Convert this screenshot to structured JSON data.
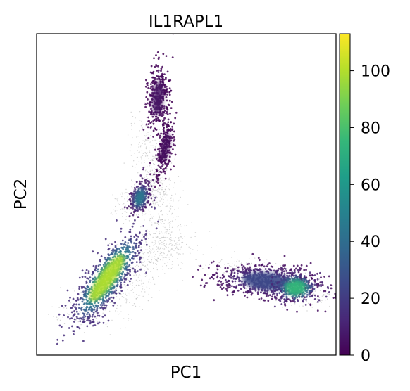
{
  "chart_data": {
    "type": "scatter",
    "title": "IL1RAPL1",
    "xlabel": "PC1",
    "ylabel": "PC2",
    "x_ticks_shown": false,
    "y_ticks_shown": false,
    "grid": false,
    "legend": "none",
    "colormap": "viridis",
    "colorbar": {
      "range": [
        0,
        113
      ],
      "ticks": [
        0,
        20,
        40,
        60,
        80,
        100
      ],
      "tick_labels": [
        "0",
        "20",
        "40",
        "60",
        "80",
        "100"
      ],
      "placement": "right"
    },
    "series": [
      {
        "clusters": [
          {
            "x": [
              0.295,
              0.295
            ],
            "y": [
              0.75,
              0.75
            ],
            "value": 95,
            "spread_dir": "diag"
          },
          {
            "x": 0.33,
            "y": 0.5,
            "value": 35
          },
          {
            "x": 0.39,
            "y": 0.8,
            "value": 4
          },
          {
            "x": 0.4,
            "y": 0.62,
            "value": 3
          },
          {
            "x": 0.81,
            "y": 0.23,
            "value": 65
          }
        ]
      }
    ]
  },
  "colors": {
    "viridis": [
      "#440154",
      "#482878",
      "#3e4989",
      "#31688e",
      "#26828e",
      "#1f9e89",
      "#35b779",
      "#6ece58",
      "#b5de2b",
      "#fde725"
    ],
    "axis": "#000000",
    "background": "#ffffff"
  }
}
